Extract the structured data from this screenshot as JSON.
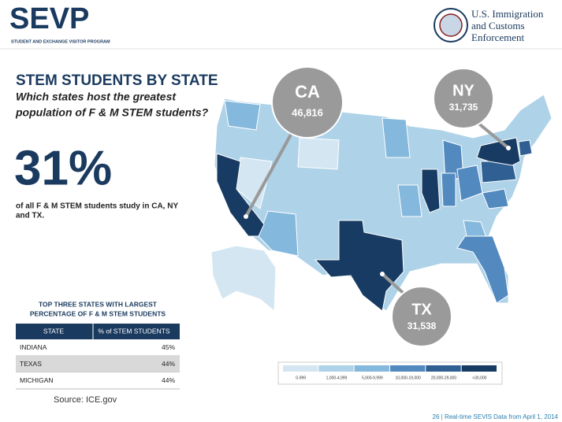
{
  "header": {
    "logo": "SEVP",
    "logo_subtitle": "STUDENT AND EXCHANGE VISITOR PROGRAM",
    "agency": [
      "U.S. Immigration",
      "and Customs",
      "Enforcement"
    ]
  },
  "title": "STEM STUDENTS BY STATE",
  "question": [
    "Which states host the greatest",
    "population of F & M STEM students?"
  ],
  "big_stat": "31%",
  "stat_text": [
    "of all F & M STEM students study in CA, NY",
    "and TX."
  ],
  "callouts": [
    {
      "state": "CA",
      "value": "46,816"
    },
    {
      "state": "NY",
      "value": "31,735"
    },
    {
      "state": "TX",
      "value": "31,538"
    }
  ],
  "table": {
    "title": [
      "TOP THREE STATES WITH LARGEST",
      "PERCENTAGE OF F & M STEM STUDENTS"
    ],
    "columns": [
      "STATE",
      "% of STEM STUDENTS"
    ],
    "rows": [
      [
        "INDIANA",
        "45%"
      ],
      [
        "TEXAS",
        "44%"
      ],
      [
        "MICHIGAN",
        "44%"
      ]
    ]
  },
  "legend": {
    "bins": [
      "0-999",
      "1,000-4,999",
      "5,000-9,999",
      "10,000-19,000",
      "20,000-29,000",
      ">30,000"
    ],
    "colors": [
      "#d3e6f2",
      "#aed2e8",
      "#84b8dc",
      "#5289bf",
      "#2f5f93",
      "#173b62"
    ]
  },
  "source": "Source: ICE.gov",
  "footer": "26  |  Real-time SEVIS Data from April 1, 2014"
}
